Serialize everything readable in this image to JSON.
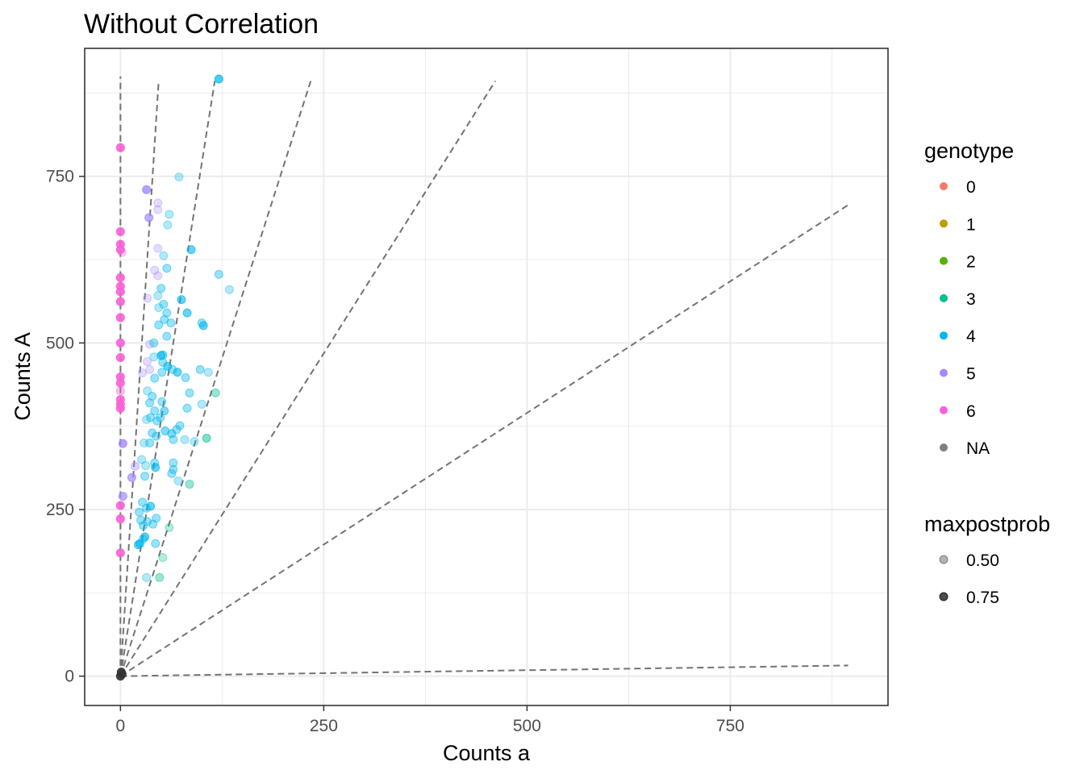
{
  "chart_data": {
    "type": "scatter",
    "title": "Without Correlation",
    "xlabel": "Counts a",
    "ylabel": "Counts A",
    "xlim": [
      -44,
      944
    ],
    "ylim": [
      -44,
      942
    ],
    "x_ticks": [
      0,
      250,
      500,
      750
    ],
    "y_ticks": [
      0,
      250,
      500,
      750
    ],
    "grid": true,
    "legend_position": "right",
    "genotype_legend": {
      "title": "genotype",
      "items": [
        {
          "label": "0",
          "color": "#F8766D"
        },
        {
          "label": "1",
          "color": "#C49A00"
        },
        {
          "label": "2",
          "color": "#53B400"
        },
        {
          "label": "3",
          "color": "#00C094"
        },
        {
          "label": "4",
          "color": "#00B6EB"
        },
        {
          "label": "5",
          "color": "#A58AFF"
        },
        {
          "label": "6",
          "color": "#FB61D7"
        },
        {
          "label": "NA",
          "color": "#7F7F7F"
        }
      ]
    },
    "alpha_legend": {
      "title": "maxpostprob",
      "items": [
        {
          "label": "0.50",
          "alpha": 0.3
        },
        {
          "label": "0.75",
          "alpha": 0.7
        }
      ]
    },
    "reference_lines": [
      {
        "x": [
          0,
          0
        ],
        "y": [
          0,
          900
        ]
      },
      {
        "x": [
          0,
          47
        ],
        "y": [
          0,
          893
        ]
      },
      {
        "x": [
          0,
          116
        ],
        "y": [
          0,
          893
        ]
      },
      {
        "x": [
          0,
          234
        ],
        "y": [
          0,
          893
        ]
      },
      {
        "x": [
          0,
          461
        ],
        "y": [
          0,
          893
        ]
      },
      {
        "x": [
          0,
          895
        ],
        "y": [
          0,
          707
        ]
      },
      {
        "x": [
          0,
          895
        ],
        "y": [
          0,
          16
        ]
      }
    ],
    "series": [
      {
        "genotype": "6",
        "color": "#FB61D7",
        "points": [
          {
            "x": 0,
            "y": 793,
            "p": 0.9
          },
          {
            "x": 0,
            "y": 667,
            "p": 0.9
          },
          {
            "x": 0,
            "y": 648,
            "p": 0.9
          },
          {
            "x": 0,
            "y": 640,
            "p": 0.9
          },
          {
            "x": 2,
            "y": 636,
            "p": 0.3
          },
          {
            "x": 0,
            "y": 598,
            "p": 0.9
          },
          {
            "x": 0,
            "y": 585,
            "p": 0.9
          },
          {
            "x": 0,
            "y": 577,
            "p": 0.9
          },
          {
            "x": 0,
            "y": 562,
            "p": 0.9
          },
          {
            "x": 0,
            "y": 538,
            "p": 0.9
          },
          {
            "x": 0,
            "y": 500,
            "p": 0.9
          },
          {
            "x": 0,
            "y": 478,
            "p": 0.9
          },
          {
            "x": 0,
            "y": 449,
            "p": 0.9
          },
          {
            "x": 0,
            "y": 440,
            "p": 0.9
          },
          {
            "x": 0,
            "y": 428,
            "p": 0.4
          },
          {
            "x": 0,
            "y": 415,
            "p": 0.9
          },
          {
            "x": 0,
            "y": 408,
            "p": 0.9
          },
          {
            "x": 0,
            "y": 402,
            "p": 0.9
          },
          {
            "x": 0,
            "y": 256,
            "p": 0.9
          },
          {
            "x": 0,
            "y": 236,
            "p": 0.9
          },
          {
            "x": 0,
            "y": 185,
            "p": 0.9
          }
        ]
      },
      {
        "genotype": "5",
        "color": "#A58AFF",
        "points": [
          {
            "x": 32,
            "y": 730,
            "p": 0.8
          },
          {
            "x": 46,
            "y": 710,
            "p": 0.3
          },
          {
            "x": 46,
            "y": 700,
            "p": 0.3
          },
          {
            "x": 35,
            "y": 688,
            "p": 0.7
          },
          {
            "x": 46,
            "y": 642,
            "p": 0.3
          },
          {
            "x": 42,
            "y": 609,
            "p": 0.3
          },
          {
            "x": 46,
            "y": 601,
            "p": 0.3
          },
          {
            "x": 33,
            "y": 567,
            "p": 0.3
          },
          {
            "x": 36,
            "y": 498,
            "p": 0.3
          },
          {
            "x": 33,
            "y": 472,
            "p": 0.3
          },
          {
            "x": 36,
            "y": 460,
            "p": 0.3
          },
          {
            "x": 27,
            "y": 455,
            "p": 0.3
          },
          {
            "x": 3,
            "y": 349,
            "p": 0.8
          },
          {
            "x": 18,
            "y": 315,
            "p": 0.4
          },
          {
            "x": 14,
            "y": 298,
            "p": 0.7
          },
          {
            "x": 3,
            "y": 270,
            "p": 0.7
          }
        ]
      },
      {
        "genotype": "4",
        "color": "#00B6EB",
        "points": [
          {
            "x": 121,
            "y": 896,
            "p": 0.7
          },
          {
            "x": 72,
            "y": 749,
            "p": 0.3
          },
          {
            "x": 60,
            "y": 693,
            "p": 0.3
          },
          {
            "x": 58,
            "y": 677,
            "p": 0.3
          },
          {
            "x": 87,
            "y": 640,
            "p": 0.6
          },
          {
            "x": 53,
            "y": 631,
            "p": 0.3
          },
          {
            "x": 57,
            "y": 612,
            "p": 0.4
          },
          {
            "x": 121,
            "y": 603,
            "p": 0.4
          },
          {
            "x": 50,
            "y": 582,
            "p": 0.4
          },
          {
            "x": 134,
            "y": 580,
            "p": 0.3
          },
          {
            "x": 75,
            "y": 565,
            "p": 0.6
          },
          {
            "x": 46,
            "y": 571,
            "p": 0.3
          },
          {
            "x": 53,
            "y": 558,
            "p": 0.4
          },
          {
            "x": 47,
            "y": 553,
            "p": 0.3
          },
          {
            "x": 82,
            "y": 545,
            "p": 0.6
          },
          {
            "x": 57,
            "y": 545,
            "p": 0.4
          },
          {
            "x": 54,
            "y": 535,
            "p": 0.4
          },
          {
            "x": 100,
            "y": 530,
            "p": 0.4
          },
          {
            "x": 102,
            "y": 526,
            "p": 0.6
          },
          {
            "x": 62,
            "y": 530,
            "p": 0.4
          },
          {
            "x": 47,
            "y": 527,
            "p": 0.4
          },
          {
            "x": 57,
            "y": 510,
            "p": 0.4
          },
          {
            "x": 41,
            "y": 500,
            "p": 0.4
          },
          {
            "x": 52,
            "y": 482,
            "p": 0.5
          },
          {
            "x": 50,
            "y": 481,
            "p": 0.6
          },
          {
            "x": 41,
            "y": 479,
            "p": 0.3
          },
          {
            "x": 52,
            "y": 471,
            "p": 0.4
          },
          {
            "x": 58,
            "y": 465,
            "p": 0.6
          },
          {
            "x": 64,
            "y": 460,
            "p": 0.4
          },
          {
            "x": 98,
            "y": 460,
            "p": 0.4
          },
          {
            "x": 108,
            "y": 456,
            "p": 0.3
          },
          {
            "x": 51,
            "y": 456,
            "p": 0.4
          },
          {
            "x": 70,
            "y": 456,
            "p": 0.6
          },
          {
            "x": 80,
            "y": 448,
            "p": 0.4
          },
          {
            "x": 42,
            "y": 447,
            "p": 0.4
          },
          {
            "x": 33,
            "y": 428,
            "p": 0.3
          },
          {
            "x": 85,
            "y": 425,
            "p": 0.4
          },
          {
            "x": 39,
            "y": 420,
            "p": 0.4
          },
          {
            "x": 51,
            "y": 412,
            "p": 0.4
          },
          {
            "x": 36,
            "y": 410,
            "p": 0.4
          },
          {
            "x": 100,
            "y": 408,
            "p": 0.3
          },
          {
            "x": 82,
            "y": 402,
            "p": 0.4
          },
          {
            "x": 54,
            "y": 398,
            "p": 0.5
          },
          {
            "x": 42,
            "y": 398,
            "p": 0.4
          },
          {
            "x": 37,
            "y": 388,
            "p": 0.4
          },
          {
            "x": 49,
            "y": 388,
            "p": 0.4
          },
          {
            "x": 32,
            "y": 385,
            "p": 0.3
          },
          {
            "x": 45,
            "y": 383,
            "p": 0.4
          },
          {
            "x": 73,
            "y": 376,
            "p": 0.4
          },
          {
            "x": 69,
            "y": 370,
            "p": 0.4
          },
          {
            "x": 55,
            "y": 368,
            "p": 0.5
          },
          {
            "x": 39,
            "y": 365,
            "p": 0.4
          },
          {
            "x": 63,
            "y": 364,
            "p": 0.5
          },
          {
            "x": 44,
            "y": 360,
            "p": 0.4
          },
          {
            "x": 79,
            "y": 355,
            "p": 0.3
          },
          {
            "x": 65,
            "y": 355,
            "p": 0.4
          },
          {
            "x": 91,
            "y": 352,
            "p": 0.3
          },
          {
            "x": 36,
            "y": 350,
            "p": 0.4
          },
          {
            "x": 29,
            "y": 350,
            "p": 0.3
          },
          {
            "x": 26,
            "y": 325,
            "p": 0.3
          },
          {
            "x": 65,
            "y": 320,
            "p": 0.4
          },
          {
            "x": 42,
            "y": 320,
            "p": 0.4
          },
          {
            "x": 31,
            "y": 316,
            "p": 0.3
          },
          {
            "x": 43,
            "y": 313,
            "p": 0.6
          },
          {
            "x": 65,
            "y": 310,
            "p": 0.4
          },
          {
            "x": 63,
            "y": 304,
            "p": 0.4
          },
          {
            "x": 30,
            "y": 300,
            "p": 0.4
          },
          {
            "x": 71,
            "y": 293,
            "p": 0.3
          },
          {
            "x": 27,
            "y": 261,
            "p": 0.4
          },
          {
            "x": 37,
            "y": 255,
            "p": 0.6
          },
          {
            "x": 32,
            "y": 252,
            "p": 0.4
          },
          {
            "x": 23,
            "y": 246,
            "p": 0.4
          },
          {
            "x": 44,
            "y": 237,
            "p": 0.4
          },
          {
            "x": 25,
            "y": 234,
            "p": 0.4
          },
          {
            "x": 33,
            "y": 232,
            "p": 0.4
          },
          {
            "x": 40,
            "y": 228,
            "p": 0.4
          },
          {
            "x": 28,
            "y": 226,
            "p": 0.4
          },
          {
            "x": 30,
            "y": 209,
            "p": 0.6
          },
          {
            "x": 28,
            "y": 206,
            "p": 0.4
          },
          {
            "x": 43,
            "y": 199,
            "p": 0.4
          },
          {
            "x": 24,
            "y": 199,
            "p": 0.6
          },
          {
            "x": 22,
            "y": 197,
            "p": 0.6
          },
          {
            "x": 32,
            "y": 148,
            "p": 0.3
          }
        ]
      },
      {
        "genotype": "3",
        "color": "#00C094",
        "points": [
          {
            "x": 117,
            "y": 425,
            "p": 0.4
          },
          {
            "x": 106,
            "y": 357,
            "p": 0.5
          },
          {
            "x": 85,
            "y": 288,
            "p": 0.4
          },
          {
            "x": 60,
            "y": 223,
            "p": 0.3
          },
          {
            "x": 52,
            "y": 178,
            "p": 0.3
          },
          {
            "x": 48,
            "y": 148,
            "p": 0.4
          }
        ]
      },
      {
        "genotype": "NA",
        "color": "#333333",
        "points": [
          {
            "x": 0,
            "y": 0,
            "p": 0.9
          },
          {
            "x": 2,
            "y": 3,
            "p": 0.9
          },
          {
            "x": 1,
            "y": 6,
            "p": 0.9
          }
        ]
      }
    ]
  }
}
